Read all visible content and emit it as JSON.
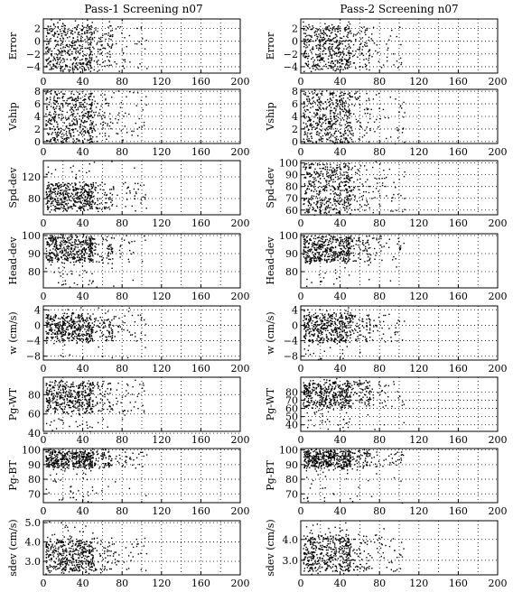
{
  "titles": [
    "Pass-1 Screening n07",
    "Pass-2 Screening n07"
  ],
  "chart_data": {
    "type": "scatter",
    "xlim": [
      0,
      200
    ],
    "xticks": [
      0,
      40,
      80,
      120,
      160,
      200
    ],
    "grid": "dotted",
    "columns": [
      "Pass-1 Screening n07",
      "Pass-2 Screening n07"
    ],
    "rows": [
      {
        "ylabel": "Error",
        "ylim": [
          -5,
          3.5
        ],
        "yticks": [
          [
            -4,
            -2,
            0,
            2
          ],
          [
            -4,
            -2,
            0,
            2
          ]
        ],
        "tick_labels": [
          [
            "−4",
            "−2",
            "0",
            "2"
          ],
          [
            "−4",
            "−2",
            "0",
            "2"
          ]
        ],
        "dense": [
          [
            -4.5,
            2.5
          ],
          [
            -4.5,
            2.5
          ]
        ]
      },
      {
        "ylabel": "Vship",
        "ylim": [
          -0.3,
          8.3
        ],
        "yticks": [
          [
            0,
            2,
            4,
            6,
            8
          ],
          [
            0,
            2,
            4,
            6,
            8
          ]
        ],
        "tick_labels": [
          [
            "0",
            "2",
            "4",
            "6",
            "8"
          ],
          [
            "0",
            "2",
            "4",
            "6",
            "8"
          ]
        ],
        "dense": [
          [
            0,
            8
          ],
          [
            0,
            8
          ]
        ]
      },
      {
        "ylabel": "Spd-dev",
        "ylim": [
          [
            50,
            150
          ],
          [
            56,
            102
          ]
        ],
        "yticks": [
          [
            80,
            120
          ],
          [
            60,
            70,
            80,
            90,
            100
          ]
        ],
        "tick_labels": [
          [
            "80",
            "120"
          ],
          [
            "60",
            "70",
            "80",
            "90",
            "100"
          ]
        ],
        "dense": [
          [
            60,
            110
          ],
          [
            58,
            100
          ]
        ]
      },
      {
        "ylabel": "Head-dev",
        "ylim": [
          [
            71,
            101
          ],
          [
            71,
            101
          ]
        ],
        "yticks": [
          [
            80,
            90,
            100
          ],
          [
            80,
            90,
            100
          ]
        ],
        "tick_labels": [
          [
            "80",
            "90",
            "100"
          ],
          [
            "80",
            "90",
            "100"
          ]
        ],
        "dense": [
          [
            86,
            100
          ],
          [
            86,
            100
          ]
        ]
      },
      {
        "ylabel": "w (cm/s)",
        "ylim": [
          -9,
          5
        ],
        "yticks": [
          [
            -8,
            -4,
            0,
            4
          ],
          [
            -8,
            -4,
            0,
            4
          ]
        ],
        "tick_labels": [
          [
            "−8",
            "−4",
            "0",
            "4"
          ],
          [
            "−8",
            "−4",
            "0",
            "4"
          ]
        ],
        "dense": [
          [
            -4,
            3
          ],
          [
            -4,
            3
          ]
        ]
      },
      {
        "ylabel": "Pg-WT",
        "ylim": [
          [
            42,
            98
          ],
          [
            32,
            98
          ]
        ],
        "yticks": [
          [
            40,
            60,
            80
          ],
          [
            40,
            50,
            60,
            70,
            80
          ]
        ],
        "tick_labels": [
          [
            "40",
            "60",
            "80"
          ],
          [
            "40",
            "50",
            "60",
            "70",
            "80"
          ]
        ],
        "dense": [
          [
            62,
            94
          ],
          [
            62,
            94
          ]
        ]
      },
      {
        "ylabel": "Pg-BT",
        "ylim": [
          [
            64,
            101
          ],
          [
            64,
            101
          ]
        ],
        "yticks": [
          [
            70,
            80,
            90,
            100
          ],
          [
            70,
            80,
            90,
            100
          ]
        ],
        "tick_labels": [
          [
            "70",
            "80",
            "90",
            "100"
          ],
          [
            "70",
            "80",
            "90",
            "100"
          ]
        ],
        "dense": [
          [
            88,
            100
          ],
          [
            88,
            100
          ]
        ]
      },
      {
        "ylabel": "sdev (cm/s)",
        "ylim": [
          [
            2.3,
            5.1
          ],
          [
            2.3,
            4.9
          ]
        ],
        "yticks": [
          [
            3.0,
            4.0,
            5.0
          ],
          [
            3.0,
            4.0
          ]
        ],
        "tick_labels": [
          [
            "3.0",
            "4.0",
            "5.0"
          ],
          [
            "3.0",
            "4.0"
          ]
        ],
        "dense": [
          [
            2.5,
            4.2
          ],
          [
            2.5,
            4.2
          ]
        ]
      }
    ]
  }
}
